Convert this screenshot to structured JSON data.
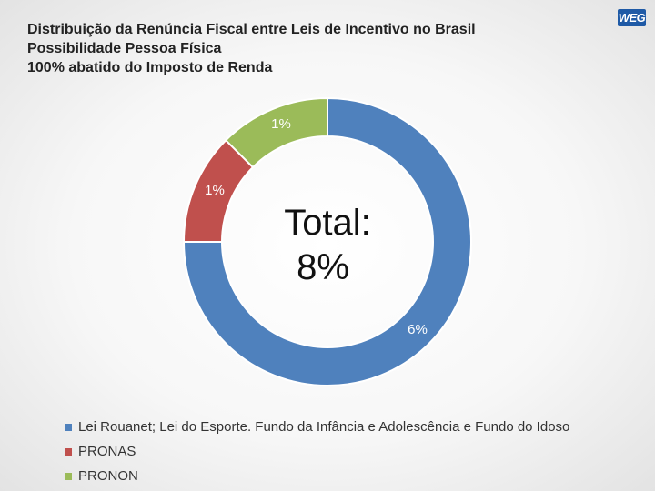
{
  "title": {
    "lines": [
      "Distribuição da Renúncia Fiscal entre Leis de Incentivo no Brasil",
      "Possibilidade Pessoa Física",
      "100% abatido do Imposto de Renda"
    ]
  },
  "logo": {
    "text": "WEG"
  },
  "chart_data": {
    "type": "pie",
    "variant": "donut",
    "title": "Distribuição da Renúncia Fiscal entre Leis de Incentivo no Brasil",
    "categories": [
      "Lei Rouanet; Lei do Esporte. Fundo da Infância e Adolescência e Fundo do Idoso",
      "PRONAS",
      "PRONON"
    ],
    "values": [
      6,
      1,
      1
    ],
    "data_labels": [
      "6%",
      "1%",
      "1%"
    ],
    "colors": [
      "#4f81bd",
      "#c0504d",
      "#9bbb59"
    ],
    "center_label": [
      "Total:",
      "8%"
    ],
    "legend_position": "bottom-left"
  }
}
